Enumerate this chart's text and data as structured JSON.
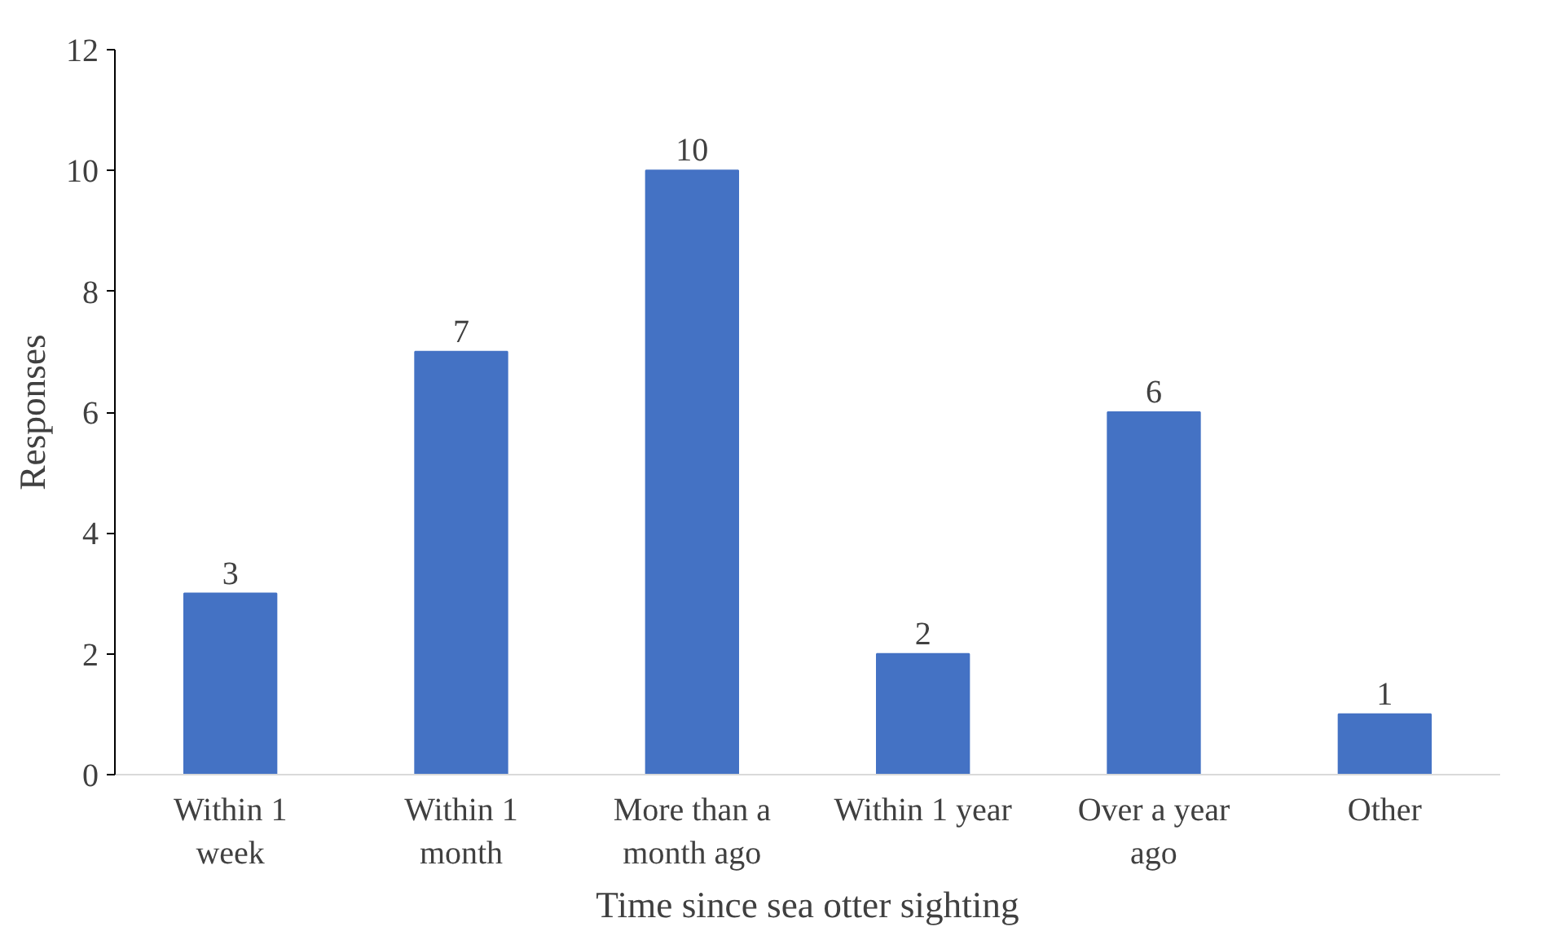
{
  "chart_data": {
    "type": "bar",
    "xlabel": "Time since sea otter sighting",
    "ylabel": "Responses",
    "categories": [
      "Within 1\nweek",
      "Within 1\nmonth",
      "More than a\nmonth ago",
      "Within 1 year",
      "Over a year\nago",
      "Other"
    ],
    "values": [
      3,
      7,
      10,
      2,
      6,
      1
    ],
    "color": "#4472c4",
    "ylim": [
      0,
      12
    ],
    "yticks": [
      0,
      2,
      4,
      6,
      8,
      10,
      12
    ],
    "grid": false,
    "data_labels": true
  }
}
